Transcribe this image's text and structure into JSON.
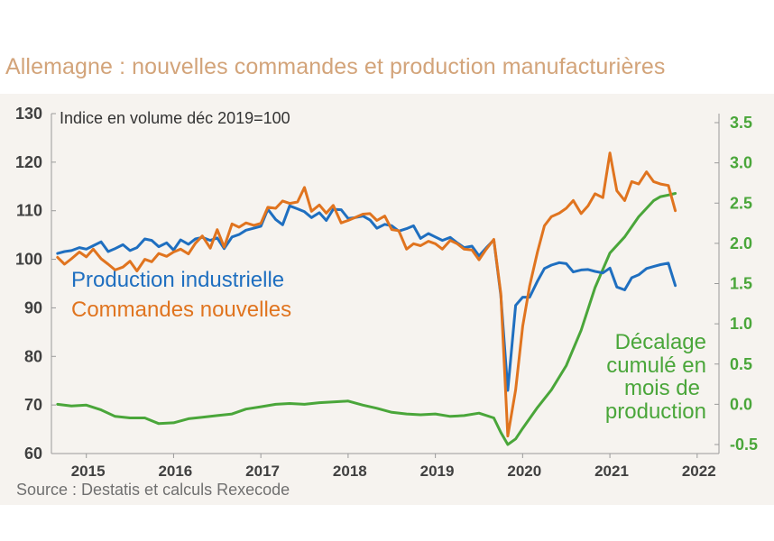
{
  "page": {
    "title": "Allemagne : nouvelles commandes et production manufacturières",
    "source": "Source : Destatis et calculs Rexecode"
  },
  "colors": {
    "production": "#1f6fc0",
    "commandes": "#e0741f",
    "decalage": "#4aa63a",
    "title": "#d3a47a",
    "plot_background": "#f6f3ef"
  },
  "chart_data": {
    "type": "line",
    "subtitle": "Indice en volume déc 2019=100",
    "x_ticks": [
      "2015",
      "2016",
      "2017",
      "2018",
      "2019",
      "2020",
      "2021",
      "2022"
    ],
    "x_range": [
      2014.6,
      2022.25
    ],
    "y_left": {
      "ticks": [
        "130",
        "120",
        "110",
        "100",
        "90",
        "80",
        "70",
        "60"
      ],
      "range": [
        60,
        130
      ]
    },
    "y_right": {
      "ticks": [
        "3.5",
        "3.0",
        "2.5",
        "2.0",
        "1.5",
        "1.0",
        "0.5",
        "0.0",
        "-0.5"
      ],
      "range": [
        -0.5,
        3.5
      ]
    },
    "grid": false,
    "series": [
      {
        "name": "Production industrielle",
        "axis": "left",
        "x": [
          2014.67,
          2014.75,
          2014.83,
          2014.92,
          2015.0,
          2015.08,
          2015.17,
          2015.25,
          2015.33,
          2015.42,
          2015.5,
          2015.58,
          2015.67,
          2015.75,
          2015.83,
          2015.92,
          2016.0,
          2016.08,
          2016.17,
          2016.25,
          2016.33,
          2016.42,
          2016.5,
          2016.58,
          2016.67,
          2016.75,
          2016.83,
          2016.92,
          2017.0,
          2017.08,
          2017.17,
          2017.25,
          2017.33,
          2017.42,
          2017.5,
          2017.58,
          2017.67,
          2017.75,
          2017.83,
          2017.92,
          2018.0,
          2018.08,
          2018.17,
          2018.25,
          2018.33,
          2018.42,
          2018.5,
          2018.58,
          2018.67,
          2018.75,
          2018.83,
          2018.92,
          2019.0,
          2019.08,
          2019.17,
          2019.25,
          2019.33,
          2019.42,
          2019.5,
          2019.58,
          2019.67,
          2019.75,
          2019.83,
          2019.92,
          2020.0,
          2020.08,
          2020.17,
          2020.25,
          2020.33,
          2020.42,
          2020.5,
          2020.58,
          2020.67,
          2020.75,
          2020.83,
          2020.92,
          2021.0,
          2021.08,
          2021.17,
          2021.25,
          2021.33,
          2021.42,
          2021.5,
          2021.58,
          2021.67,
          2021.75
        ],
        "values": [
          101.2,
          101.6,
          101.8,
          102.4,
          102.1,
          102.8,
          103.6,
          101.6,
          102.2,
          103.0,
          101.8,
          102.4,
          104.2,
          103.9,
          102.6,
          103.4,
          101.9,
          104.0,
          103.1,
          104.2,
          104.5,
          103.9,
          104.4,
          102.2,
          104.6,
          105.1,
          106.0,
          106.4,
          106.8,
          110.3,
          108.2,
          107.1,
          111.0,
          110.4,
          109.8,
          108.6,
          109.6,
          108.0,
          110.3,
          110.2,
          108.4,
          108.6,
          108.9,
          108.1,
          106.4,
          107.2,
          106.9,
          105.8,
          106.3,
          106.9,
          104.3,
          105.3,
          104.6,
          103.9,
          104.5,
          103.4,
          102.4,
          102.7,
          100.7,
          102.3,
          104.0,
          92.5,
          73.0,
          90.5,
          92.2,
          92.2,
          95.5,
          98.1,
          98.8,
          99.3,
          99.1,
          97.4,
          97.8,
          97.9,
          97.5,
          97.2,
          98.2,
          94.3,
          93.7,
          96.2,
          96.8,
          98.1,
          98.5,
          98.9,
          99.2,
          94.6
        ]
      },
      {
        "name": "Commandes nouvelles",
        "axis": "left",
        "x": [
          2014.67,
          2014.75,
          2014.83,
          2014.92,
          2015.0,
          2015.08,
          2015.17,
          2015.25,
          2015.33,
          2015.42,
          2015.5,
          2015.58,
          2015.67,
          2015.75,
          2015.83,
          2015.92,
          2016.0,
          2016.08,
          2016.17,
          2016.25,
          2016.33,
          2016.42,
          2016.5,
          2016.58,
          2016.67,
          2016.75,
          2016.83,
          2016.92,
          2017.0,
          2017.08,
          2017.17,
          2017.25,
          2017.33,
          2017.42,
          2017.5,
          2017.58,
          2017.67,
          2017.75,
          2017.83,
          2017.92,
          2018.0,
          2018.08,
          2018.17,
          2018.25,
          2018.33,
          2018.42,
          2018.5,
          2018.58,
          2018.67,
          2018.75,
          2018.83,
          2018.92,
          2019.0,
          2019.08,
          2019.17,
          2019.25,
          2019.33,
          2019.42,
          2019.5,
          2019.58,
          2019.67,
          2019.75,
          2019.83,
          2019.92,
          2020.0,
          2020.08,
          2020.17,
          2020.25,
          2020.33,
          2020.42,
          2020.5,
          2020.58,
          2020.67,
          2020.75,
          2020.83,
          2020.92,
          2021.0,
          2021.08,
          2021.17,
          2021.25,
          2021.33,
          2021.42,
          2021.5,
          2021.58,
          2021.67,
          2021.75
        ],
        "values": [
          100.4,
          99.0,
          100.1,
          101.5,
          100.5,
          102.1,
          100.1,
          99.0,
          97.8,
          98.4,
          99.6,
          97.6,
          100.0,
          99.5,
          101.2,
          100.6,
          101.5,
          102.1,
          101.1,
          103.3,
          104.8,
          102.3,
          106.1,
          102.5,
          107.3,
          106.6,
          107.5,
          107.0,
          107.4,
          110.7,
          110.5,
          112.0,
          111.5,
          111.8,
          114.8,
          109.9,
          111.2,
          109.5,
          111.1,
          107.5,
          108.0,
          108.6,
          109.3,
          109.4,
          108.0,
          108.9,
          106.1,
          105.9,
          102.1,
          103.2,
          102.8,
          103.7,
          103.2,
          102.1,
          103.9,
          103.2,
          102.1,
          101.9,
          99.9,
          102.0,
          104.1,
          92.9,
          63.6,
          73.1,
          86.2,
          94.5,
          101.5,
          106.9,
          108.8,
          109.5,
          110.5,
          112.1,
          109.4,
          111.0,
          113.5,
          112.7,
          121.9,
          114.1,
          112.1,
          116.0,
          115.5,
          118.0,
          116.0,
          115.5,
          115.2,
          110.0
        ]
      },
      {
        "name": "Décalage cumulé en mois de production",
        "axis": "right",
        "x": [
          2014.67,
          2014.83,
          2015.0,
          2015.17,
          2015.33,
          2015.5,
          2015.67,
          2015.83,
          2016.0,
          2016.17,
          2016.33,
          2016.5,
          2016.67,
          2016.83,
          2017.0,
          2017.17,
          2017.33,
          2017.5,
          2017.67,
          2017.83,
          2018.0,
          2018.17,
          2018.33,
          2018.5,
          2018.67,
          2018.83,
          2019.0,
          2019.17,
          2019.33,
          2019.5,
          2019.67,
          2019.75,
          2019.83,
          2019.92,
          2020.0,
          2020.17,
          2020.33,
          2020.5,
          2020.67,
          2020.83,
          2021.0,
          2021.17,
          2021.33,
          2021.5,
          2021.58,
          2021.67,
          2021.75
        ],
        "values": [
          0.0,
          -0.02,
          -0.01,
          -0.07,
          -0.15,
          -0.17,
          -0.17,
          -0.24,
          -0.23,
          -0.18,
          -0.16,
          -0.14,
          -0.12,
          -0.06,
          -0.03,
          0.0,
          0.01,
          0.0,
          0.02,
          0.03,
          0.04,
          -0.01,
          -0.05,
          -0.1,
          -0.12,
          -0.13,
          -0.12,
          -0.15,
          -0.14,
          -0.11,
          -0.17,
          -0.35,
          -0.5,
          -0.43,
          -0.3,
          -0.04,
          0.18,
          0.48,
          0.92,
          1.45,
          1.88,
          2.08,
          2.33,
          2.53,
          2.58,
          2.6,
          2.62
        ]
      }
    ],
    "annotations": {
      "decalage_label": [
        "Décalage",
        "cumulé en",
        "mois de",
        "production"
      ]
    }
  }
}
